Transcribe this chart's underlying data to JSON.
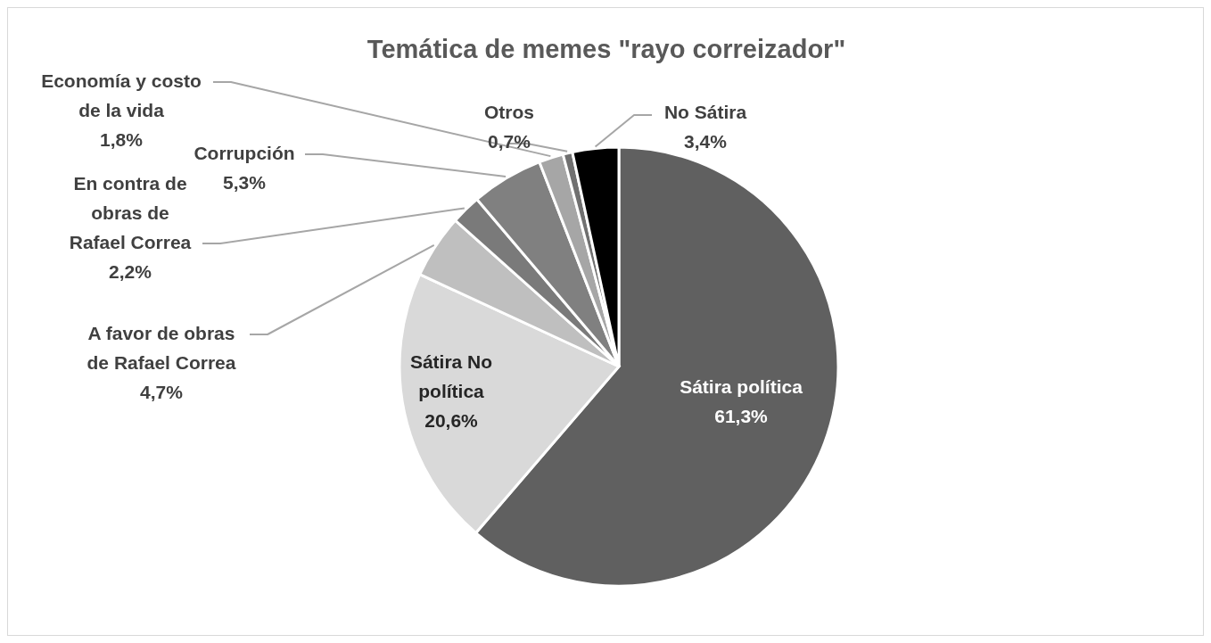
{
  "chart_data": {
    "type": "pie",
    "title": "Temática de memes \"rayo correizador\"",
    "categories": [
      "Sátira política",
      "Sátira No política",
      "A favor de obras de Rafael Correa",
      "En contra de obras de Rafael Correa",
      "Corrupción",
      "Economía y costo de la vida",
      "Otros",
      "No Sátira"
    ],
    "values": [
      61.3,
      20.6,
      4.7,
      2.2,
      5.3,
      1.8,
      0.7,
      3.4
    ],
    "value_labels": [
      "61,3%",
      "20,6%",
      "4,7%",
      "2,2%",
      "5,3%",
      "1,8%",
      "0,7%",
      "3,4%"
    ],
    "colors": [
      "#606060",
      "#d9d9d9",
      "#bfbfbf",
      "#7a7a7a",
      "#808080",
      "#a6a6a6",
      "#707070",
      "#000000"
    ],
    "legend": false
  }
}
